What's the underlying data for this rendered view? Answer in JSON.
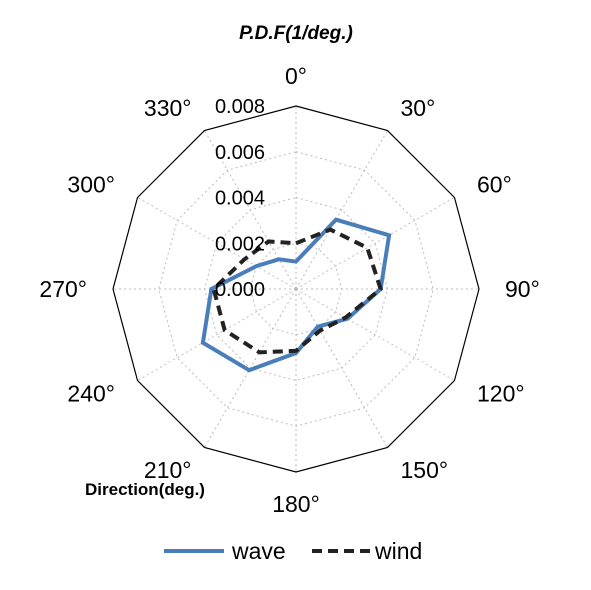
{
  "chart_data": {
    "type": "radar",
    "ylabel": "P.D.F(1/deg.)",
    "xlabel": "Direction(deg.)",
    "directions": [
      0,
      30,
      60,
      90,
      120,
      150,
      180,
      210,
      240,
      270,
      300,
      330
    ],
    "direction_labels": [
      "0°",
      "30°",
      "60°",
      "90°",
      "120°",
      "150°",
      "180°",
      "210°",
      "240°",
      "270°",
      "300°",
      "330°"
    ],
    "rlim": [
      0,
      0.008
    ],
    "rticks": [
      0.0,
      0.002,
      0.004,
      0.006,
      0.008
    ],
    "rtick_labels": [
      "0.000",
      "0.002",
      "0.004",
      "0.006",
      "0.008"
    ],
    "grid": true,
    "legend_position": "bottom",
    "series": [
      {
        "name": "wave",
        "color": "#4a7ebb",
        "dash": "solid",
        "values": [
          0.0012,
          0.0035,
          0.0047,
          0.0037,
          0.0026,
          0.0019,
          0.0028,
          0.0041,
          0.0047,
          0.0037,
          0.002,
          0.0015
        ]
      },
      {
        "name": "wind",
        "color": "#222222",
        "dash": "dashed",
        "values": [
          0.002,
          0.003,
          0.0036,
          0.0037,
          0.0025,
          0.0021,
          0.0027,
          0.0032,
          0.0036,
          0.0036,
          0.0026,
          0.0024
        ]
      }
    ]
  }
}
